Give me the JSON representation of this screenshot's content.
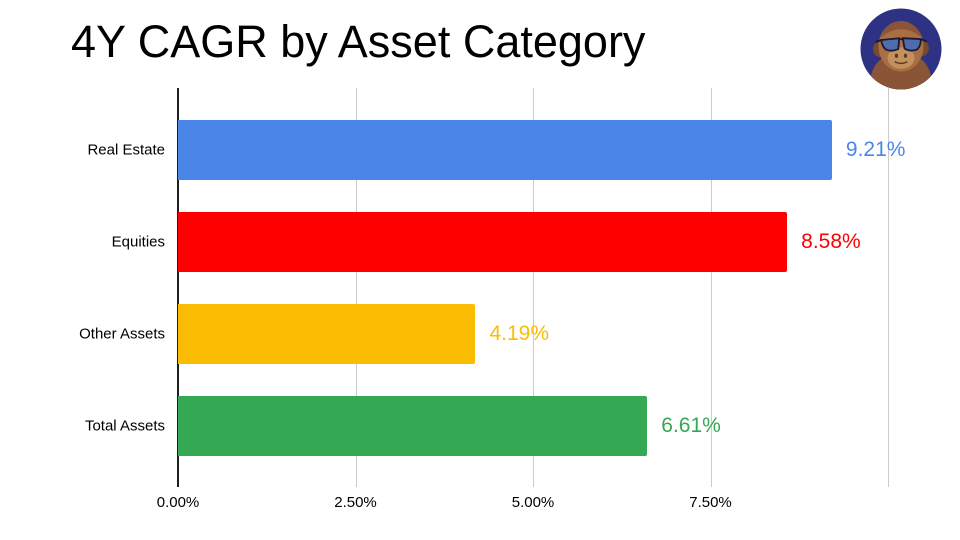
{
  "header": {
    "title": "4Y CAGR by Asset Category"
  },
  "avatar": {
    "icon": "gorilla-avatar-icon",
    "background": "#2d3282"
  },
  "chart_data": {
    "type": "bar",
    "orientation": "horizontal",
    "title": "4Y CAGR by Asset Category",
    "categories": [
      "Real Estate",
      "Equities",
      "Other Assets",
      "Total Assets"
    ],
    "values": [
      9.21,
      8.58,
      4.19,
      6.61
    ],
    "value_labels": [
      "9.21%",
      "8.58%",
      "4.19%",
      "6.61%"
    ],
    "bar_colors": [
      "#4a86e8",
      "#ff0000",
      "#fbbc04",
      "#34a853"
    ],
    "xlabel": "",
    "ylabel": "",
    "xlim": [
      0,
      10
    ],
    "x_ticks": [
      {
        "value": 0,
        "label": "0.00%"
      },
      {
        "value": 2.5,
        "label": "2.50%"
      },
      {
        "value": 5,
        "label": "5.00%"
      },
      {
        "value": 7.5,
        "label": "7.50%"
      }
    ],
    "x_gridlines": [
      2.5,
      5,
      7.5,
      10
    ],
    "grid": true,
    "legend": false
  },
  "colors": {
    "gridline": "#cccccc",
    "axis_line": "#1f1f1f",
    "text": "#000000",
    "background": "#ffffff"
  }
}
